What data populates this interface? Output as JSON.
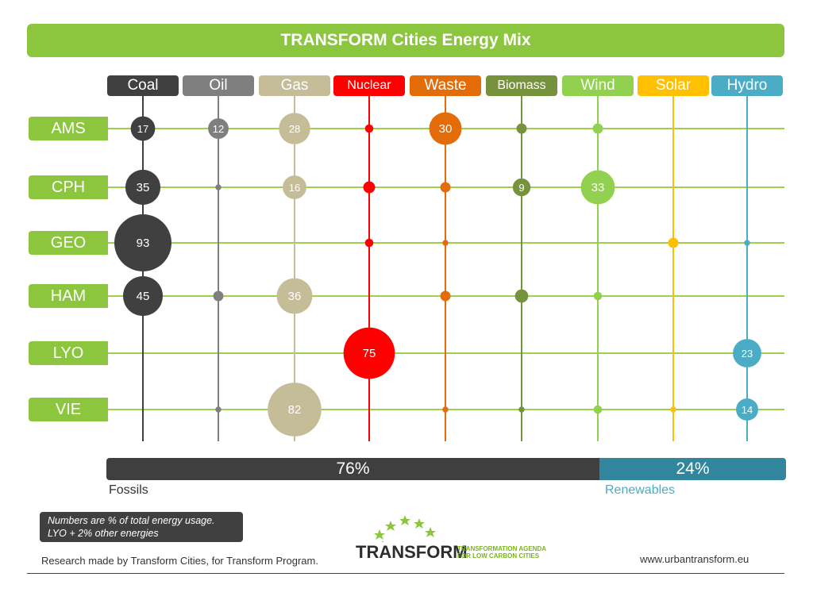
{
  "title": "TRANSFORM Cities Energy Mix",
  "chart_data": {
    "type": "bubble-matrix",
    "title": "TRANSFORM Cities Energy Mix",
    "categories": [
      {
        "name": "Coal",
        "color": "#404040"
      },
      {
        "name": "Oil",
        "color": "#7f7f7f"
      },
      {
        "name": "Gas",
        "color": "#c4bd97"
      },
      {
        "name": "Nuclear",
        "color": "#ff0000"
      },
      {
        "name": "Waste",
        "color": "#e36c09"
      },
      {
        "name": "Biomass",
        "color": "#76923c"
      },
      {
        "name": "Wind",
        "color": "#92d050"
      },
      {
        "name": "Solar",
        "color": "#ffc000"
      },
      {
        "name": "Hydro",
        "color": "#4bacc6"
      }
    ],
    "cities": [
      "AMS",
      "CPH",
      "GEO",
      "HAM",
      "LYO",
      "VIE"
    ],
    "values": [
      [
        17,
        12,
        28,
        2,
        30,
        3,
        3,
        null,
        null
      ],
      [
        35,
        1,
        16,
        4,
        3,
        9,
        33,
        null,
        null
      ],
      [
        93,
        null,
        null,
        2,
        1,
        null,
        null,
        3,
        1
      ],
      [
        45,
        3,
        36,
        null,
        3,
        5,
        2,
        null,
        null
      ],
      [
        null,
        null,
        null,
        75,
        null,
        null,
        null,
        null,
        23
      ],
      [
        null,
        1,
        82,
        null,
        1,
        1,
        2,
        1,
        14
      ]
    ],
    "labels": [
      [
        "17",
        "12",
        "28",
        "",
        "30",
        "",
        "",
        "",
        ""
      ],
      [
        "35",
        "",
        "16",
        "",
        "",
        "9",
        "33",
        "",
        ""
      ],
      [
        "93",
        "",
        "",
        "",
        "",
        "",
        "",
        "",
        ""
      ],
      [
        "45",
        "",
        "36",
        "",
        "",
        "",
        "",
        "",
        ""
      ],
      [
        "",
        "",
        "",
        "75",
        "",
        "",
        "",
        "",
        "23"
      ],
      [
        "",
        "",
        "82",
        "",
        "",
        "",
        "",
        "",
        "14"
      ]
    ],
    "summary": [
      {
        "label": "Fossils",
        "value": "76%",
        "percent": 76
      },
      {
        "label": "Renewables",
        "value": "24%",
        "percent": 24
      }
    ]
  },
  "footer": {
    "note_line1": "Numbers are % of total energy usage.",
    "note_line2": "LYO + 2% other energies",
    "credit": "Research made by Transform Cities, for Transform Program.",
    "url": "www.urbantransform.eu",
    "logo_word": "TRANSFORM",
    "logo_tag1": "TRANSFORMATION AGENDA",
    "logo_tag2": "FOR LOW CARBON CITIES"
  },
  "colors": {
    "accent": "#8cc63f",
    "fossil": "#3f3f3f",
    "renewable": "#31859c"
  }
}
